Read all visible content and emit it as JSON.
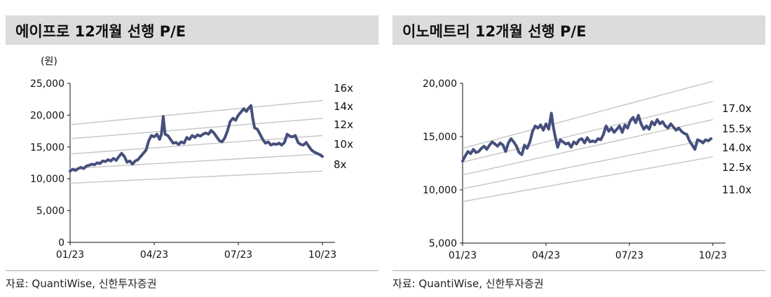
{
  "chart_data": [
    {
      "type": "line",
      "title": "에이프로 12개월 선행 P/E",
      "unit": "(원)",
      "x_ticks": [
        "01/23",
        "04/23",
        "07/23",
        "10/23"
      ],
      "y_ticks": [
        "0",
        "5,000",
        "10,000",
        "15,000",
        "20,000",
        "25,000"
      ],
      "ylim": [
        0,
        25000
      ],
      "grid": false,
      "line_color": "#46507d",
      "band_color": "#c8c8c8",
      "bands": [
        {
          "label": "16x",
          "start": 18500,
          "end": 22300
        },
        {
          "label": "14x",
          "start": 16300,
          "end": 19500
        },
        {
          "label": "12x",
          "start": 13900,
          "end": 16800
        },
        {
          "label": "10x",
          "start": 11600,
          "end": 13900
        },
        {
          "label": "8x",
          "start": 9300,
          "end": 11200
        }
      ],
      "series": [
        {
          "points": [
            [
              0,
              11200
            ],
            [
              3,
              11500
            ],
            [
              6,
              11300
            ],
            [
              9,
              11600
            ],
            [
              12,
              11800
            ],
            [
              15,
              11600
            ],
            [
              18,
              12000
            ],
            [
              21,
              12100
            ],
            [
              24,
              12300
            ],
            [
              27,
              12200
            ],
            [
              30,
              12500
            ],
            [
              33,
              12400
            ],
            [
              36,
              12800
            ],
            [
              39,
              12700
            ],
            [
              42,
              13000
            ],
            [
              45,
              12800
            ],
            [
              48,
              13200
            ],
            [
              51,
              12900
            ],
            [
              54,
              13500
            ],
            [
              57,
              14000
            ],
            [
              60,
              13500
            ],
            [
              63,
              12600
            ],
            [
              66,
              12800
            ],
            [
              69,
              12300
            ],
            [
              72,
              12800
            ],
            [
              75,
              13000
            ],
            [
              78,
              13500
            ],
            [
              81,
              14000
            ],
            [
              84,
              14500
            ],
            [
              87,
              16000
            ],
            [
              90,
              16800
            ],
            [
              93,
              16600
            ],
            [
              96,
              17000
            ],
            [
              99,
              16200
            ],
            [
              101,
              17000
            ],
            [
              103,
              19800
            ],
            [
              105,
              17000
            ],
            [
              108,
              16800
            ],
            [
              111,
              16200
            ],
            [
              114,
              15600
            ],
            [
              117,
              15700
            ],
            [
              120,
              15400
            ],
            [
              123,
              15800
            ],
            [
              126,
              15600
            ],
            [
              129,
              16500
            ],
            [
              132,
              16200
            ],
            [
              135,
              16800
            ],
            [
              138,
              16500
            ],
            [
              141,
              16900
            ],
            [
              144,
              16700
            ],
            [
              147,
              17000
            ],
            [
              150,
              17200
            ],
            [
              153,
              17000
            ],
            [
              156,
              17600
            ],
            [
              159,
              17200
            ],
            [
              162,
              16600
            ],
            [
              165,
              16000
            ],
            [
              168,
              15800
            ],
            [
              171,
              16400
            ],
            [
              174,
              17500
            ],
            [
              177,
              19000
            ],
            [
              180,
              19500
            ],
            [
              183,
              19200
            ],
            [
              186,
              20000
            ],
            [
              189,
              20500
            ],
            [
              192,
              21000
            ],
            [
              195,
              20600
            ],
            [
              198,
              21200
            ],
            [
              200,
              21500
            ],
            [
              202,
              19500
            ],
            [
              204,
              18000
            ],
            [
              207,
              17800
            ],
            [
              210,
              17000
            ],
            [
              213,
              16200
            ],
            [
              216,
              15600
            ],
            [
              219,
              15800
            ],
            [
              222,
              15300
            ],
            [
              225,
              15500
            ],
            [
              228,
              15400
            ],
            [
              231,
              15600
            ],
            [
              234,
              15300
            ],
            [
              237,
              15700
            ],
            [
              240,
              17000
            ],
            [
              243,
              16700
            ],
            [
              246,
              16600
            ],
            [
              249,
              16800
            ],
            [
              252,
              15700
            ],
            [
              255,
              15400
            ],
            [
              258,
              15300
            ],
            [
              261,
              15700
            ],
            [
              264,
              15100
            ],
            [
              267,
              14500
            ],
            [
              270,
              14200
            ],
            [
              273,
              14000
            ],
            [
              276,
              13800
            ],
            [
              279,
              13500
            ]
          ]
        }
      ]
    },
    {
      "type": "line",
      "title": "이노메트리 12개월 선행 P/E",
      "x_ticks": [
        "01/23",
        "04/23",
        "07/23",
        "10/23"
      ],
      "y_ticks": [
        "5,000",
        "10,000",
        "15,000",
        "20,000"
      ],
      "ylim": [
        5000,
        20000
      ],
      "grid": false,
      "line_color": "#46507d",
      "band_color": "#c8c8c8",
      "bands": [
        {
          "label": "17.0x",
          "start": 13900,
          "end": 20200
        },
        {
          "label": "15.5x",
          "start": 12600,
          "end": 18300
        },
        {
          "label": "14.0x",
          "start": 11400,
          "end": 16600
        },
        {
          "label": "12.5x",
          "start": 10100,
          "end": 14800
        },
        {
          "label": "11.0x",
          "start": 8900,
          "end": 13100
        }
      ],
      "series": [
        {
          "points": [
            [
              0,
              12700
            ],
            [
              3,
              13200
            ],
            [
              6,
              13600
            ],
            [
              9,
              13400
            ],
            [
              12,
              13800
            ],
            [
              15,
              13500
            ],
            [
              18,
              13600
            ],
            [
              21,
              13900
            ],
            [
              24,
              14100
            ],
            [
              27,
              13800
            ],
            [
              30,
              14200
            ],
            [
              33,
              14500
            ],
            [
              36,
              14300
            ],
            [
              39,
              14100
            ],
            [
              42,
              14400
            ],
            [
              45,
              14200
            ],
            [
              48,
              13600
            ],
            [
              51,
              14400
            ],
            [
              54,
              14800
            ],
            [
              57,
              14500
            ],
            [
              60,
              14100
            ],
            [
              63,
              13500
            ],
            [
              66,
              13300
            ],
            [
              69,
              14200
            ],
            [
              72,
              13900
            ],
            [
              75,
              14500
            ],
            [
              78,
              15500
            ],
            [
              81,
              16000
            ],
            [
              84,
              15800
            ],
            [
              87,
              16100
            ],
            [
              90,
              15600
            ],
            [
              93,
              16200
            ],
            [
              96,
              15700
            ],
            [
              99,
              17200
            ],
            [
              101,
              16000
            ],
            [
              103,
              15100
            ],
            [
              106,
              14000
            ],
            [
              109,
              14700
            ],
            [
              112,
              14500
            ],
            [
              115,
              14300
            ],
            [
              118,
              14400
            ],
            [
              121,
              14000
            ],
            [
              124,
              14500
            ],
            [
              127,
              14300
            ],
            [
              130,
              14700
            ],
            [
              133,
              14800
            ],
            [
              136,
              14400
            ],
            [
              139,
              14900
            ],
            [
              142,
              14500
            ],
            [
              145,
              14600
            ],
            [
              148,
              14500
            ],
            [
              151,
              14800
            ],
            [
              154,
              14700
            ],
            [
              157,
              15200
            ],
            [
              160,
              16000
            ],
            [
              163,
              15500
            ],
            [
              166,
              15800
            ],
            [
              169,
              15400
            ],
            [
              172,
              15700
            ],
            [
              175,
              16000
            ],
            [
              178,
              15400
            ],
            [
              181,
              16100
            ],
            [
              184,
              15800
            ],
            [
              187,
              16500
            ],
            [
              190,
              16800
            ],
            [
              193,
              16300
            ],
            [
              196,
              17000
            ],
            [
              199,
              16200
            ],
            [
              202,
              15700
            ],
            [
              205,
              16000
            ],
            [
              208,
              15700
            ],
            [
              211,
              16400
            ],
            [
              214,
              16100
            ],
            [
              217,
              16600
            ],
            [
              220,
              16200
            ],
            [
              223,
              16400
            ],
            [
              226,
              16000
            ],
            [
              229,
              15800
            ],
            [
              232,
              16200
            ],
            [
              235,
              15900
            ],
            [
              238,
              15600
            ],
            [
              241,
              15800
            ],
            [
              244,
              15500
            ],
            [
              247,
              15300
            ],
            [
              250,
              15200
            ],
            [
              253,
              14600
            ],
            [
              256,
              14200
            ],
            [
              259,
              13800
            ],
            [
              262,
              14700
            ],
            [
              265,
              14600
            ],
            [
              268,
              14400
            ],
            [
              271,
              14700
            ],
            [
              274,
              14600
            ],
            [
              277,
              14800
            ]
          ]
        }
      ]
    }
  ],
  "sources": [
    "자료: QuantiWise, 신한투자증권",
    "자료: QuantiWise, 신한투자증권"
  ]
}
